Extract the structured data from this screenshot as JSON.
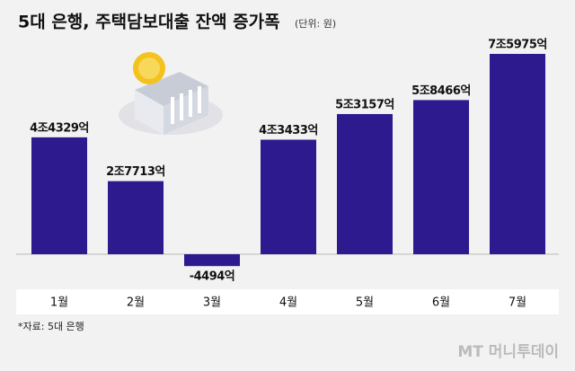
{
  "chart_data": {
    "type": "bar",
    "title": "5대 은행, 주택담보대출 잔액 증가폭",
    "subtitle": "(단위: 원)",
    "categories": [
      "1월",
      "2월",
      "3월",
      "4월",
      "5월",
      "6월",
      "7월"
    ],
    "values": [
      44329,
      27713,
      -4494,
      43433,
      53157,
      58466,
      75975
    ],
    "value_labels": [
      "4조4329억",
      "2조7713억",
      "-4494억",
      "4조3433억",
      "5조3157억",
      "5조8466억",
      "7조5975억"
    ],
    "color": "#2c1a8e",
    "source": "*자료: 5대 은행",
    "watermark": "MT 머니투데이"
  }
}
